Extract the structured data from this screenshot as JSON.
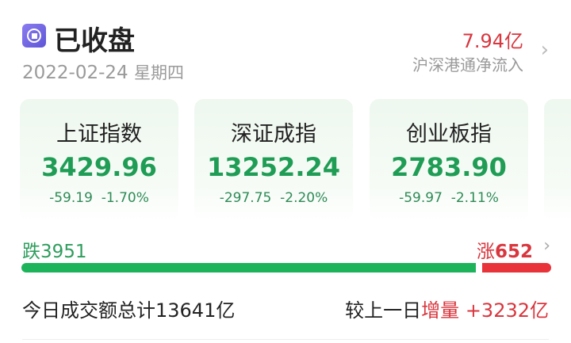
{
  "header": {
    "status_icon": "stop-circle-icon",
    "title": "已收盘",
    "date": "2022-02-24",
    "weekday": "星期四",
    "flow_value": "7.94亿",
    "flow_label": "沪深港通净流入"
  },
  "indices": [
    {
      "name": "上证指数",
      "value": "3429.96",
      "change": "-59.19",
      "pct": "-1.70%"
    },
    {
      "name": "深证成指",
      "value": "13252.24",
      "change": "-297.75",
      "pct": "-2.20%"
    },
    {
      "name": "创业板指",
      "value": "2783.90",
      "change": "-59.97",
      "pct": "-2.11%"
    }
  ],
  "breadth": {
    "down_label": "跌",
    "down": "3951",
    "up_label": "涨",
    "up": "652",
    "down_fraction": 0.858
  },
  "volume": {
    "text": "今日成交额总计13641亿",
    "compare_label": "较上一日",
    "compare_type": "增量",
    "compare_value": "+3232亿"
  },
  "colors": {
    "up": "#d9363e",
    "down": "#1db35a"
  }
}
